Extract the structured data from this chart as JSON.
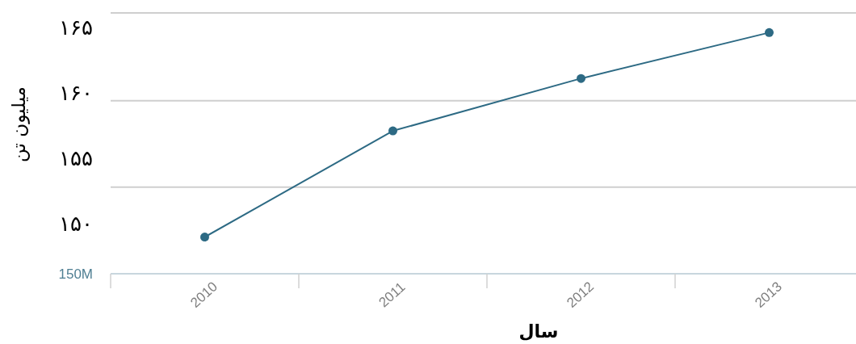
{
  "chart_data": {
    "type": "line",
    "xlabel": "سال",
    "ylabel": "میلیون تن",
    "categories": [
      "2010",
      "2011",
      "2012",
      "2013"
    ],
    "values": [
      149.0,
      157.1,
      161.1,
      164.6
    ],
    "color": "#2d6a84",
    "ylim": [
      146.2,
      166.1
    ],
    "yticks": [
      {
        "value": 150,
        "label": "۱۵۰"
      },
      {
        "value": 152.8,
        "label": null
      },
      {
        "value": 155,
        "label": "۱۵۵"
      },
      {
        "value": 159.4,
        "label": null
      },
      {
        "value": 160,
        "label": "۱۶۰"
      },
      {
        "value": 165,
        "label": "۱۶۵"
      },
      {
        "value": 166.1,
        "label": null
      }
    ],
    "grid": "y",
    "marker": "circle",
    "line_style": "solid",
    "annotations": [
      "150M"
    ]
  }
}
